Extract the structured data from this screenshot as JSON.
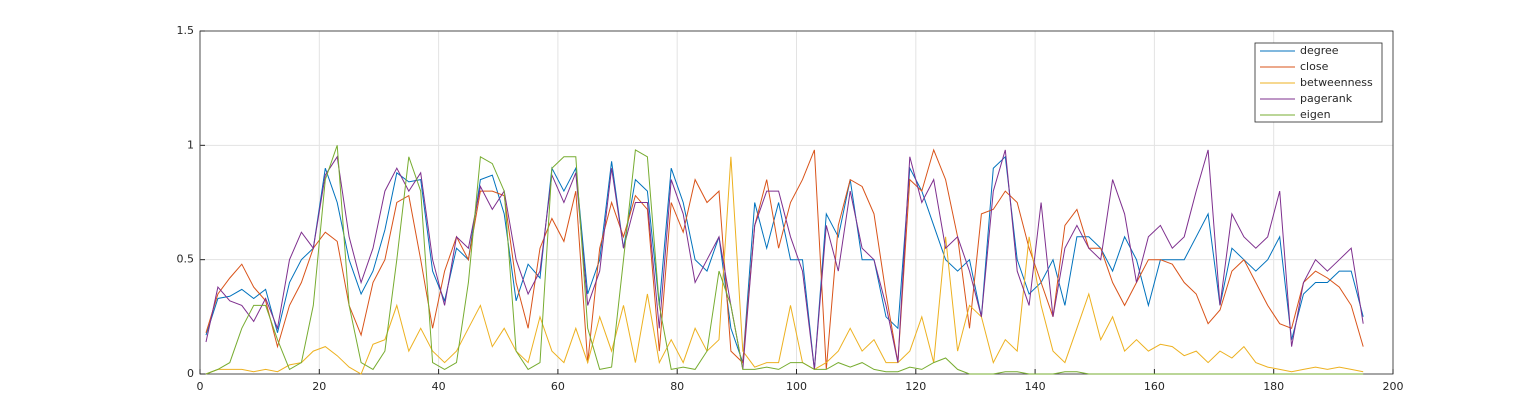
{
  "chart_data": {
    "type": "line",
    "x": [
      1,
      3,
      5,
      7,
      9,
      11,
      13,
      15,
      17,
      19,
      21,
      23,
      25,
      27,
      29,
      31,
      33,
      35,
      37,
      39,
      41,
      43,
      45,
      47,
      49,
      51,
      53,
      55,
      57,
      59,
      61,
      63,
      65,
      67,
      69,
      71,
      73,
      75,
      77,
      79,
      81,
      83,
      85,
      87,
      89,
      91,
      93,
      95,
      97,
      99,
      101,
      103,
      105,
      107,
      109,
      111,
      113,
      115,
      117,
      119,
      121,
      123,
      125,
      127,
      129,
      131,
      133,
      135,
      137,
      139,
      141,
      143,
      145,
      147,
      149,
      151,
      153,
      155,
      157,
      159,
      161,
      163,
      165,
      167,
      169,
      171,
      173,
      175,
      177,
      179,
      181,
      183,
      185,
      187,
      189,
      191,
      193,
      195
    ],
    "series": [
      {
        "name": "degree",
        "color": "#0072bd",
        "values": [
          0.17,
          0.33,
          0.34,
          0.37,
          0.33,
          0.37,
          0.18,
          0.4,
          0.5,
          0.55,
          0.9,
          0.75,
          0.5,
          0.35,
          0.45,
          0.63,
          0.88,
          0.84,
          0.85,
          0.45,
          0.32,
          0.55,
          0.5,
          0.85,
          0.87,
          0.7,
          0.32,
          0.48,
          0.42,
          0.9,
          0.8,
          0.9,
          0.35,
          0.5,
          0.93,
          0.55,
          0.85,
          0.8,
          0.3,
          0.9,
          0.75,
          0.5,
          0.45,
          0.6,
          0.2,
          0.05,
          0.75,
          0.55,
          0.75,
          0.5,
          0.5,
          0.02,
          0.7,
          0.6,
          0.85,
          0.5,
          0.5,
          0.25,
          0.2,
          0.9,
          0.8,
          0.65,
          0.5,
          0.45,
          0.5,
          0.25,
          0.9,
          0.95,
          0.5,
          0.35,
          0.4,
          0.5,
          0.3,
          0.6,
          0.6,
          0.55,
          0.45,
          0.6,
          0.5,
          0.3,
          0.5,
          0.5,
          0.5,
          0.6,
          0.7,
          0.3,
          0.55,
          0.5,
          0.45,
          0.5,
          0.6,
          0.15,
          0.35,
          0.4,
          0.4,
          0.45,
          0.45,
          0.25
        ]
      },
      {
        "name": "close",
        "color": "#d95319",
        "values": [
          0.18,
          0.35,
          0.42,
          0.48,
          0.38,
          0.32,
          0.12,
          0.3,
          0.4,
          0.55,
          0.62,
          0.58,
          0.3,
          0.17,
          0.4,
          0.5,
          0.75,
          0.78,
          0.5,
          0.2,
          0.45,
          0.6,
          0.5,
          0.8,
          0.8,
          0.78,
          0.4,
          0.2,
          0.55,
          0.68,
          0.58,
          0.8,
          0.05,
          0.55,
          0.75,
          0.6,
          0.78,
          0.72,
          0.1,
          0.75,
          0.62,
          0.85,
          0.75,
          0.8,
          0.1,
          0.05,
          0.65,
          0.85,
          0.55,
          0.75,
          0.85,
          0.98,
          0.02,
          0.65,
          0.85,
          0.82,
          0.7,
          0.35,
          0.05,
          0.85,
          0.8,
          0.98,
          0.85,
          0.6,
          0.2,
          0.7,
          0.72,
          0.8,
          0.75,
          0.55,
          0.4,
          0.25,
          0.65,
          0.72,
          0.55,
          0.55,
          0.4,
          0.3,
          0.4,
          0.5,
          0.5,
          0.48,
          0.4,
          0.35,
          0.22,
          0.28,
          0.45,
          0.5,
          0.4,
          0.3,
          0.22,
          0.2,
          0.4,
          0.45,
          0.42,
          0.38,
          0.3,
          0.12
        ]
      },
      {
        "name": "betweenness",
        "color": "#edb120",
        "values": [
          0,
          0.02,
          0.02,
          0.02,
          0.01,
          0.02,
          0.01,
          0.04,
          0.05,
          0.1,
          0.12,
          0.08,
          0.03,
          0,
          0.13,
          0.15,
          0.3,
          0.1,
          0.2,
          0.1,
          0.05,
          0.1,
          0.2,
          0.3,
          0.12,
          0.2,
          0.1,
          0.05,
          0.25,
          0.1,
          0.05,
          0.2,
          0.05,
          0.25,
          0.1,
          0.3,
          0.05,
          0.35,
          0.05,
          0.15,
          0.05,
          0.2,
          0.1,
          0.15,
          0.95,
          0.1,
          0.03,
          0.05,
          0.05,
          0.3,
          0.05,
          0.02,
          0.05,
          0.1,
          0.2,
          0.1,
          0.15,
          0.05,
          0.05,
          0.1,
          0.25,
          0.05,
          0.6,
          0.1,
          0.3,
          0.25,
          0.05,
          0.15,
          0.1,
          0.6,
          0.3,
          0.1,
          0.05,
          0.2,
          0.35,
          0.15,
          0.25,
          0.1,
          0.15,
          0.1,
          0.13,
          0.12,
          0.08,
          0.1,
          0.05,
          0.1,
          0.07,
          0.12,
          0.05,
          0.03,
          0.02,
          0.01,
          0.02,
          0.03,
          0.02,
          0.03,
          0.02,
          0.01
        ]
      },
      {
        "name": "pagerank",
        "color": "#7e2f8e",
        "values": [
          0.14,
          0.38,
          0.32,
          0.3,
          0.23,
          0.33,
          0.2,
          0.5,
          0.62,
          0.55,
          0.87,
          0.95,
          0.6,
          0.4,
          0.55,
          0.8,
          0.9,
          0.8,
          0.88,
          0.5,
          0.3,
          0.6,
          0.55,
          0.82,
          0.72,
          0.8,
          0.5,
          0.35,
          0.45,
          0.87,
          0.75,
          0.88,
          0.3,
          0.45,
          0.9,
          0.55,
          0.75,
          0.75,
          0.2,
          0.85,
          0.7,
          0.4,
          0.5,
          0.6,
          0.3,
          0.02,
          0.65,
          0.8,
          0.8,
          0.6,
          0.45,
          0.02,
          0.65,
          0.45,
          0.8,
          0.55,
          0.5,
          0.3,
          0.05,
          0.95,
          0.75,
          0.85,
          0.55,
          0.6,
          0.45,
          0.25,
          0.8,
          0.98,
          0.45,
          0.3,
          0.75,
          0.25,
          0.55,
          0.65,
          0.55,
          0.5,
          0.85,
          0.7,
          0.4,
          0.6,
          0.65,
          0.55,
          0.6,
          0.8,
          0.98,
          0.3,
          0.7,
          0.6,
          0.55,
          0.6,
          0.8,
          0.12,
          0.4,
          0.5,
          0.45,
          0.5,
          0.55,
          0.22
        ]
      },
      {
        "name": "eigen",
        "color": "#77ac30",
        "values": [
          0,
          0.02,
          0.05,
          0.2,
          0.3,
          0.3,
          0.15,
          0.02,
          0.05,
          0.3,
          0.85,
          1.0,
          0.3,
          0.05,
          0.02,
          0.1,
          0.5,
          0.95,
          0.8,
          0.05,
          0.02,
          0.05,
          0.4,
          0.95,
          0.92,
          0.8,
          0.1,
          0.02,
          0.05,
          0.9,
          0.95,
          0.95,
          0.2,
          0.02,
          0.03,
          0.5,
          0.98,
          0.95,
          0.3,
          0.02,
          0.03,
          0.02,
          0.1,
          0.45,
          0.3,
          0.02,
          0.02,
          0.03,
          0.02,
          0.05,
          0.05,
          0.02,
          0.02,
          0.05,
          0.03,
          0.05,
          0.02,
          0.01,
          0.01,
          0.03,
          0.02,
          0.05,
          0.07,
          0.02,
          0,
          0,
          0,
          0.01,
          0.01,
          0,
          0,
          0,
          0.01,
          0.01,
          0,
          0,
          0,
          0,
          0,
          0,
          0,
          0,
          0,
          0,
          0,
          0,
          0,
          0,
          0,
          0,
          0,
          0,
          0,
          0,
          0,
          0,
          0,
          0
        ]
      }
    ],
    "xlim": [
      0,
      200
    ],
    "xticks": [
      0,
      20,
      40,
      60,
      80,
      100,
      120,
      140,
      160,
      180,
      200
    ],
    "ylim": [
      0,
      1.5
    ],
    "yticks": [
      0,
      0.5,
      1,
      1.5
    ],
    "grid": true,
    "legend": "northeast"
  }
}
